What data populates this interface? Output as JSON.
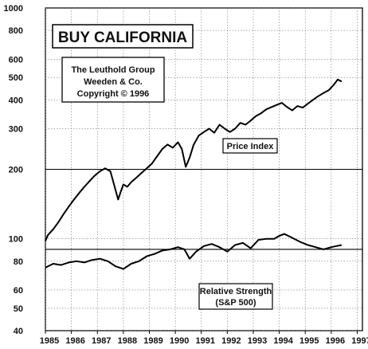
{
  "chart_data": {
    "type": "line",
    "title": "BUY CALIFORNIA",
    "credit_lines": [
      "The Leuthold Group",
      "Weeden & Co.",
      "Copyright © 1996"
    ],
    "y_scale": "log",
    "ylim": [
      40,
      1000
    ],
    "xlim": [
      1985,
      1997.2
    ],
    "y_ticks": [
      40,
      50,
      60,
      80,
      100,
      200,
      300,
      400,
      500,
      600,
      800,
      1000
    ],
    "x_ticks": [
      1985,
      1986,
      1987,
      1988,
      1989,
      1990,
      1991,
      1992,
      1993,
      1994,
      1995,
      1996,
      1997
    ],
    "grid": true,
    "series": [
      {
        "name": "Price Index",
        "x": [
          1985.0,
          1985.1,
          1985.3,
          1985.5,
          1985.7,
          1985.9,
          1986.1,
          1986.3,
          1986.5,
          1986.7,
          1986.9,
          1987.1,
          1987.3,
          1987.5,
          1987.65,
          1987.8,
          1987.9,
          1988.0,
          1988.15,
          1988.3,
          1988.5,
          1988.7,
          1988.9,
          1989.1,
          1989.3,
          1989.5,
          1989.7,
          1989.9,
          1990.1,
          1990.25,
          1990.4,
          1990.55,
          1990.7,
          1990.9,
          1991.1,
          1991.3,
          1991.5,
          1991.7,
          1991.9,
          1992.1,
          1992.3,
          1992.5,
          1992.7,
          1992.9,
          1993.1,
          1993.3,
          1993.5,
          1993.7,
          1993.9,
          1994.1,
          1994.3,
          1994.5,
          1994.7,
          1994.9,
          1995.1,
          1995.3,
          1995.5,
          1995.7,
          1995.9,
          1996.1,
          1996.25,
          1996.4
        ],
        "y": [
          98,
          104,
          110,
          118,
          128,
          138,
          148,
          158,
          168,
          178,
          188,
          196,
          202,
          196,
          170,
          148,
          160,
          172,
          168,
          176,
          184,
          193,
          202,
          212,
          228,
          245,
          256,
          248,
          262,
          245,
          205,
          225,
          255,
          280,
          290,
          300,
          288,
          312,
          300,
          290,
          300,
          318,
          312,
          325,
          340,
          350,
          364,
          372,
          380,
          388,
          372,
          360,
          376,
          370,
          385,
          400,
          415,
          428,
          440,
          465,
          490,
          480
        ]
      },
      {
        "name": "Relative Strength (S&P 500)",
        "x": [
          1985.0,
          1985.3,
          1985.6,
          1985.9,
          1986.2,
          1986.5,
          1986.8,
          1987.1,
          1987.4,
          1987.7,
          1988.0,
          1988.3,
          1988.6,
          1988.9,
          1989.2,
          1989.5,
          1989.8,
          1990.1,
          1990.35,
          1990.55,
          1990.8,
          1991.1,
          1991.4,
          1991.7,
          1992.0,
          1992.3,
          1992.6,
          1992.9,
          1993.2,
          1993.5,
          1993.8,
          1994.0,
          1994.2,
          1994.5,
          1994.8,
          1995.1,
          1995.4,
          1995.7,
          1996.0,
          1996.2,
          1996.4
        ],
        "y": [
          75,
          78,
          77,
          79,
          80,
          79,
          81,
          82,
          80,
          76,
          74,
          78,
          80,
          84,
          86,
          89,
          90,
          92,
          90,
          82,
          88,
          93,
          95,
          92,
          88,
          94,
          96,
          91,
          99,
          100,
          100,
          103,
          105,
          101,
          97,
          94,
          92,
          90,
          92,
          93,
          94
        ]
      }
    ],
    "reference_lines": [
      90,
      200
    ]
  }
}
